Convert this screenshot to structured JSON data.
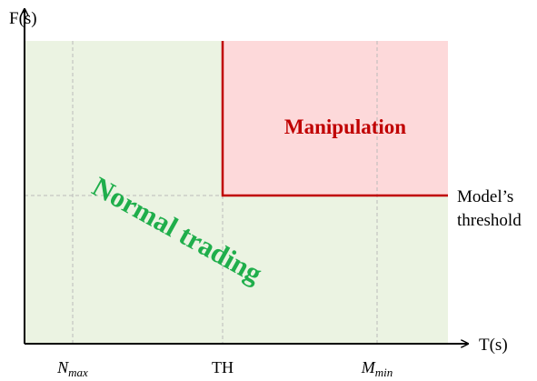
{
  "axes": {
    "y_label": "F(s)",
    "x_label": "T(s)"
  },
  "x_markers": [
    {
      "base": "N",
      "sub": "max"
    },
    {
      "label": "TH"
    },
    {
      "base": "M",
      "sub": "min"
    }
  ],
  "regions": {
    "manipulation": "Manipulation",
    "normal": "Normal trading"
  },
  "threshold_label": [
    "Model’s",
    "threshold"
  ]
}
